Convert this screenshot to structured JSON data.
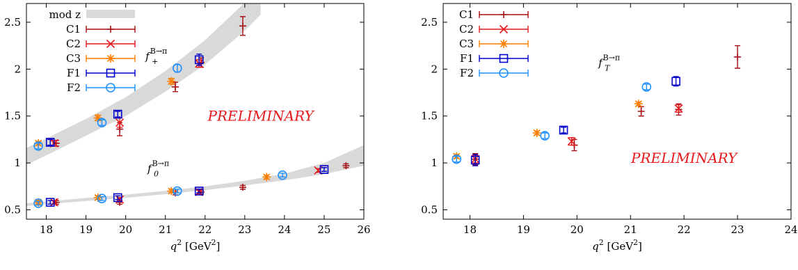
{
  "chart_data": [
    {
      "type": "scatter",
      "xlabel": "q2 [GeV2]",
      "xlim": [
        17.5,
        26
      ],
      "ylim": [
        0.4,
        2.7
      ],
      "xticks": [
        "18",
        "19",
        "20",
        "21",
        "22",
        "23",
        "24",
        "25",
        "26"
      ],
      "yticks": [
        "0.5",
        "1",
        "1.5",
        "2",
        "2.5"
      ],
      "watermark": "PRELIMINARY",
      "labels": {
        "fplus": "f+B→π",
        "fzero": "f0B→π"
      },
      "legend": [
        "mod z",
        "C1",
        "C2",
        "C3",
        "F1",
        "F2"
      ],
      "bands": [
        {
          "name": "mod z",
          "of": "f+",
          "x": [
            17.5,
            18,
            19,
            20,
            21,
            22,
            23,
            23.4
          ],
          "y": [
            1.07,
            1.17,
            1.38,
            1.6,
            1.87,
            2.18,
            2.56,
            2.74
          ],
          "halfwidth": [
            0.09,
            0.09,
            0.09,
            0.1,
            0.11,
            0.13,
            0.15,
            0.16
          ]
        },
        {
          "name": "mod z",
          "of": "f0",
          "x": [
            17.5,
            18,
            19,
            20,
            21,
            22,
            23,
            24,
            25,
            26
          ],
          "y": [
            0.555,
            0.575,
            0.61,
            0.645,
            0.685,
            0.73,
            0.785,
            0.85,
            0.94,
            1.08
          ],
          "halfwidth": [
            0.015,
            0.015,
            0.016,
            0.017,
            0.018,
            0.02,
            0.025,
            0.035,
            0.06,
            0.11
          ]
        }
      ],
      "series": [
        {
          "name": "C1",
          "color": "#a50f15",
          "marker": "plus",
          "points": [
            {
              "x": 18.25,
              "y": 1.21,
              "err": 0.03
            },
            {
              "x": 19.85,
              "y": 1.36,
              "err": 0.07
            },
            {
              "x": 21.25,
              "y": 1.81,
              "err": 0.05
            },
            {
              "x": 21.9,
              "y": 2.07,
              "err": 0.05
            },
            {
              "x": 22.95,
              "y": 2.46,
              "err": 0.1
            },
            {
              "x": 18.25,
              "y": 0.58,
              "err": 0.02
            },
            {
              "x": 19.85,
              "y": 0.58,
              "err": 0.02
            },
            {
              "x": 21.25,
              "y": 0.68,
              "err": 0.02
            },
            {
              "x": 21.9,
              "y": 0.69,
              "err": 0.02
            },
            {
              "x": 22.95,
              "y": 0.74,
              "err": 0.02
            },
            {
              "x": 25.55,
              "y": 0.97,
              "err": 0.02
            }
          ]
        },
        {
          "name": "C2",
          "color": "#e41a1c",
          "marker": "cross",
          "points": [
            {
              "x": 18.2,
              "y": 1.21,
              "err": 0.03
            },
            {
              "x": 19.85,
              "y": 1.43,
              "err": 0.05
            },
            {
              "x": 21.85,
              "y": 2.06,
              "err": 0.04
            },
            {
              "x": 18.2,
              "y": 0.58,
              "err": 0.02
            },
            {
              "x": 19.85,
              "y": 0.61,
              "err": 0.02
            },
            {
              "x": 21.85,
              "y": 0.69,
              "err": 0.02
            },
            {
              "x": 24.85,
              "y": 0.92,
              "err": 0.02
            }
          ]
        },
        {
          "name": "C3",
          "color": "#ff7f00",
          "marker": "star",
          "points": [
            {
              "x": 17.8,
              "y": 1.21,
              "err": 0.02
            },
            {
              "x": 19.3,
              "y": 1.48,
              "err": 0.03
            },
            {
              "x": 21.15,
              "y": 1.87,
              "err": 0.03
            },
            {
              "x": 17.8,
              "y": 0.58,
              "err": 0.02
            },
            {
              "x": 19.3,
              "y": 0.63,
              "err": 0.02
            },
            {
              "x": 21.15,
              "y": 0.7,
              "err": 0.02
            },
            {
              "x": 23.55,
              "y": 0.85,
              "err": 0.02
            }
          ]
        },
        {
          "name": "F1",
          "color": "#0000cc",
          "marker": "square",
          "points": [
            {
              "x": 18.1,
              "y": 1.22,
              "err": 0.03
            },
            {
              "x": 19.8,
              "y": 1.52,
              "err": 0.03
            },
            {
              "x": 21.85,
              "y": 2.1,
              "err": 0.06
            },
            {
              "x": 18.1,
              "y": 0.58,
              "err": 0.02
            },
            {
              "x": 19.8,
              "y": 0.63,
              "err": 0.02
            },
            {
              "x": 21.85,
              "y": 0.7,
              "err": 0.02
            },
            {
              "x": 25.0,
              "y": 0.93,
              "err": 0.02
            }
          ]
        },
        {
          "name": "F2",
          "color": "#1e90ff",
          "marker": "circle",
          "points": [
            {
              "x": 17.8,
              "y": 1.18,
              "err": 0.03
            },
            {
              "x": 19.4,
              "y": 1.43,
              "err": 0.03
            },
            {
              "x": 21.3,
              "y": 2.01,
              "err": 0.04
            },
            {
              "x": 17.8,
              "y": 0.57,
              "err": 0.02
            },
            {
              "x": 19.4,
              "y": 0.62,
              "err": 0.02
            },
            {
              "x": 21.3,
              "y": 0.7,
              "err": 0.02
            },
            {
              "x": 23.95,
              "y": 0.87,
              "err": 0.02
            }
          ]
        }
      ]
    },
    {
      "type": "scatter",
      "xlabel": "q2 [GeV2]",
      "xlim": [
        17.5,
        24
      ],
      "ylim": [
        0.4,
        2.7
      ],
      "xticks": [
        "18",
        "19",
        "20",
        "21",
        "22",
        "23",
        "24"
      ],
      "yticks": [
        "0.5",
        "1",
        "1.5",
        "2",
        "2.5"
      ],
      "watermark": "PRELIMINARY",
      "labels": {
        "ftensor": "fTB→π"
      },
      "legend": [
        "C1",
        "C2",
        "C3",
        "F1",
        "F2"
      ],
      "series": [
        {
          "name": "C1",
          "color": "#a50f15",
          "marker": "plus",
          "points": [
            {
              "x": 18.1,
              "y": 1.04,
              "err": 0.06
            },
            {
              "x": 19.95,
              "y": 1.19,
              "err": 0.06
            },
            {
              "x": 21.2,
              "y": 1.55,
              "err": 0.05
            },
            {
              "x": 21.9,
              "y": 1.57,
              "err": 0.06
            },
            {
              "x": 23.0,
              "y": 2.13,
              "err": 0.12
            }
          ]
        },
        {
          "name": "C2",
          "color": "#e41a1c",
          "marker": "cross",
          "points": [
            {
              "x": 18.1,
              "y": 1.04,
              "err": 0.04
            },
            {
              "x": 19.9,
              "y": 1.23,
              "err": 0.04
            },
            {
              "x": 21.9,
              "y": 1.58,
              "err": 0.04
            }
          ]
        },
        {
          "name": "C3",
          "color": "#ff7f00",
          "marker": "star",
          "points": [
            {
              "x": 17.75,
              "y": 1.07,
              "err": 0.02
            },
            {
              "x": 19.25,
              "y": 1.32,
              "err": 0.02
            },
            {
              "x": 21.15,
              "y": 1.63,
              "err": 0.02
            }
          ]
        },
        {
          "name": "F1",
          "color": "#0000cc",
          "marker": "square",
          "points": [
            {
              "x": 18.1,
              "y": 1.03,
              "err": 0.06
            },
            {
              "x": 19.75,
              "y": 1.35,
              "err": 0.03
            },
            {
              "x": 21.85,
              "y": 1.87,
              "err": 0.05
            }
          ]
        },
        {
          "name": "F2",
          "color": "#1e90ff",
          "marker": "circle",
          "points": [
            {
              "x": 17.75,
              "y": 1.04,
              "err": 0.03
            },
            {
              "x": 19.4,
              "y": 1.29,
              "err": 0.03
            },
            {
              "x": 21.3,
              "y": 1.81,
              "err": 0.03
            }
          ]
        }
      ]
    }
  ]
}
